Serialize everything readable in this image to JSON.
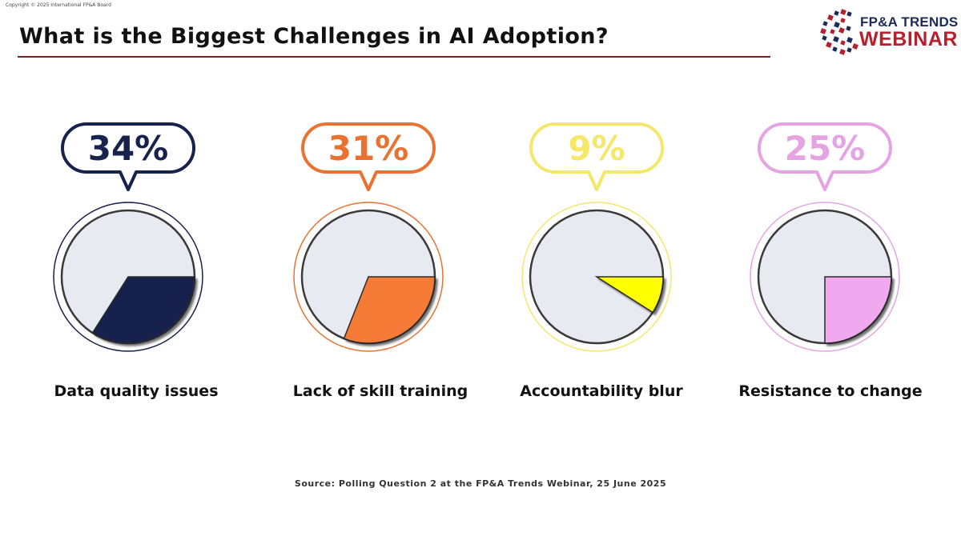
{
  "copyright": "Copyright © 2025 International FP&A Board",
  "title": "What is the Biggest Challenges in AI Adoption?",
  "logo": {
    "line1": "FP&A TRENDS",
    "line2": "WEBINAR",
    "colors": {
      "navy": "#1d2a5c",
      "red": "#b5202e"
    }
  },
  "source": "Source: Polling Question 2 at the FP&A Trends Webinar, 25 June 2025",
  "chart_data": {
    "type": "pie",
    "unit": "%",
    "categories": [
      "Data quality issues",
      "Lack of skill training",
      "Accountability blur",
      "Resistance to change"
    ],
    "values": [
      34,
      31,
      9,
      25
    ],
    "labels": [
      "34%",
      "31%",
      "9%",
      "25%"
    ],
    "colors": [
      "#17224d",
      "#f57a35",
      "#ffff00",
      "#f0a8ee"
    ],
    "label_colors": [
      "#17224d",
      "#ea7230",
      "#f5e76a",
      "#e5a3e4"
    ],
    "background_color": "#e8eaf2",
    "title": "What is the Biggest Challenges in AI Adoption?"
  }
}
